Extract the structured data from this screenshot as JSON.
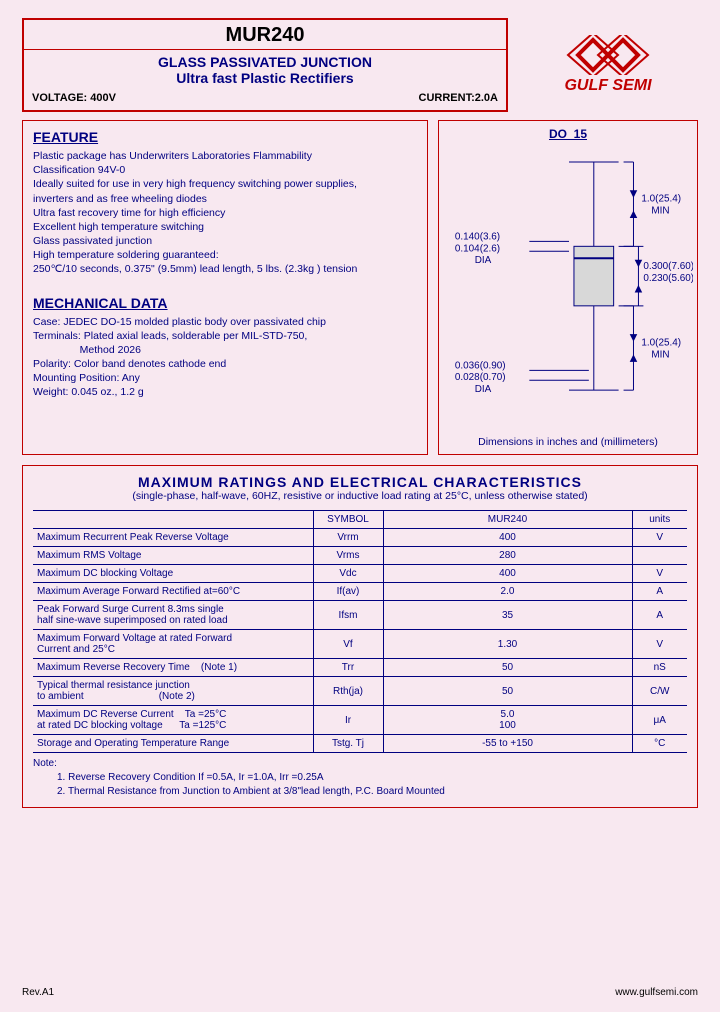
{
  "header": {
    "part_number": "MUR240",
    "line1": "GLASS PASSIVATED JUNCTION",
    "line2": "Ultra fast Plastic Rectifiers",
    "voltage_label": "VOLTAGE: 400V",
    "current_label": "CURRENT:2.0A",
    "brand": "GULF SEMI",
    "logo_color": "#c00000"
  },
  "feature": {
    "title": "FEATURE",
    "lines": [
      "Plastic package has Underwriters Laboratories Flammability",
      "Classification 94V-0",
      "Ideally suited for use in very high frequency switching power supplies,",
      "inverters and as free wheeling diodes",
      "Ultra fast recovery time for high efficiency",
      "Excellent high temperature switching",
      "Glass passivated junction",
      "High temperature soldering guaranteed:",
      "250℃/10 seconds, 0.375\" (9.5mm) lead length, 5 lbs. (2.3kg ) tension"
    ]
  },
  "mechanical": {
    "title": "MECHANICAL DATA",
    "lines": [
      "Case: JEDEC DO-15 molded plastic body over passivated chip",
      "Terminals: Plated axial leads, solderable per MIL-STD-750,",
      "                Method 2026",
      "Polarity: Color band denotes cathode end",
      "Mounting Position: Any",
      "Weight: 0.045 oz., 1.2 g"
    ]
  },
  "diagram": {
    "package": "DO_15",
    "caption": "Dimensions in inches and (millimeters)",
    "lead_dia_top": "0.140(3.6)",
    "lead_dia_bot": "0.104(2.6)",
    "lead_dia_label": "DIA",
    "lead_len_top": "1.0(25.4)",
    "lead_len_bot": "MIN",
    "body_len_top": "0.300(7.60)",
    "body_len_bot": "0.230(5.60)",
    "wire_dia_top": "0.036(0.90)",
    "wire_dia_bot": "0.028(0.70)",
    "wire_dia_label": "DIA",
    "colors": {
      "outline": "#000080",
      "body_fill": "#d0d0d0"
    }
  },
  "ratings": {
    "title": "MAXIMUM  RATINGS  AND  ELECTRICAL  CHARACTERISTICS",
    "subtitle": "(single-phase, half-wave, 60HZ, resistive or inductive load rating at 25°C, unless otherwise stated)",
    "columns": [
      "",
      "SYMBOL",
      "MUR240",
      "units"
    ],
    "rows": [
      {
        "desc": "Maximum Recurrent Peak Reverse Voltage",
        "sym": "Vrrm",
        "val": "400",
        "unit": "V"
      },
      {
        "desc": "Maximum RMS Voltage",
        "sym": "Vrms",
        "val": "280",
        "unit": ""
      },
      {
        "desc": "Maximum DC blocking Voltage",
        "sym": "Vdc",
        "val": "400",
        "unit": "V"
      },
      {
        "desc": "Maximum Average Forward Rectified at=60°C",
        "sym": "If(av)",
        "val": "2.0",
        "unit": "A"
      },
      {
        "desc": "Peak Forward Surge Current 8.3ms single\nhalf sine-wave superimposed on rated load",
        "sym": "Ifsm",
        "val": "35",
        "unit": "A"
      },
      {
        "desc": "Maximum Forward Voltage at rated Forward\nCurrent and 25°C",
        "sym": "Vf",
        "val": "1.30",
        "unit": "V"
      },
      {
        "desc": "Maximum Reverse Recovery Time    (Note 1)",
        "sym": "Trr",
        "val": "50",
        "unit": "nS"
      },
      {
        "desc": "Typical thermal resistance junction\n to ambient                           (Note 2)",
        "sym": "Rth(ja)",
        "val": "50",
        "unit": "C/W"
      },
      {
        "desc": "Maximum DC Reverse Current    Ta =25°C\n at rated DC blocking voltage      Ta =125°C",
        "sym": "Ir",
        "val": "5.0\n100",
        "unit": "μA"
      },
      {
        "desc": "Storage and Operating Temperature Range",
        "sym": "Tstg. Tj",
        "val": "-55 to +150",
        "unit": "°C"
      }
    ],
    "notes_label": "Note:",
    "notes": [
      "1. Reverse Recovery Condition If =0.5A, Ir =1.0A, Irr =0.25A",
      "2. Thermal Resistance from Junction to Ambient at 3/8\"lead length, P.C. Board Mounted"
    ]
  },
  "footer": {
    "rev": "Rev.A1",
    "url": "www.gulfsemi.com"
  }
}
